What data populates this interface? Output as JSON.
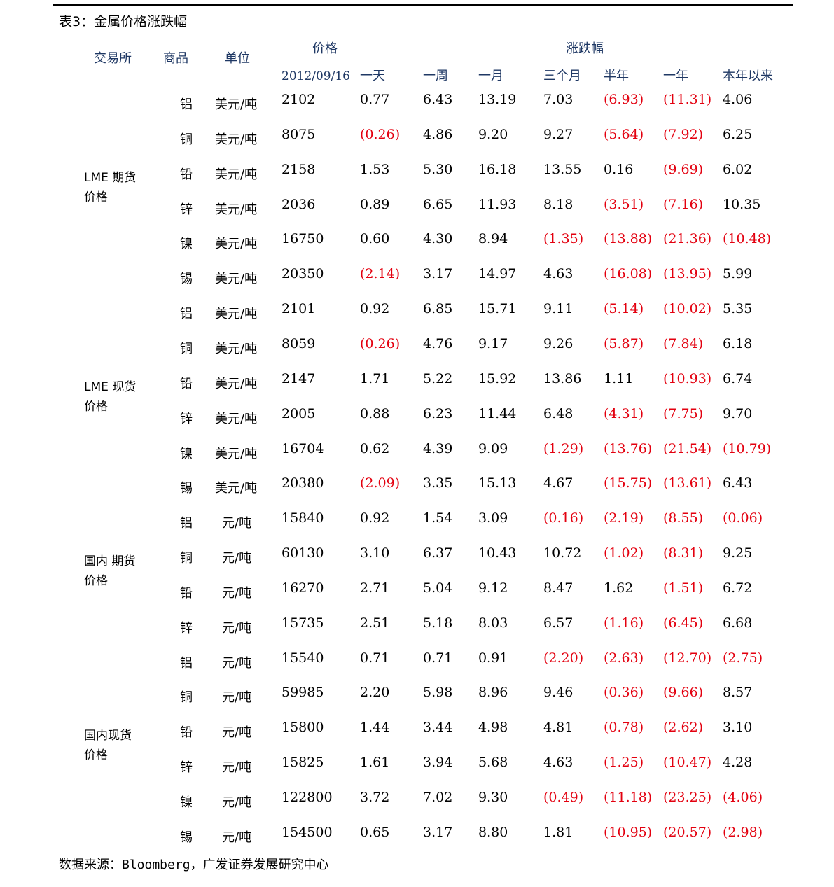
{
  "title": "表3：金属价格涨跌幅",
  "headers": {
    "exchange": "交易所",
    "commodity": "商品",
    "unit": "单位",
    "price": "价格",
    "change": "涨跌幅",
    "date": "2012/09/16",
    "periods": [
      "一天",
      "一周",
      "一月",
      "三个月",
      "半年",
      "一年",
      "本年以来"
    ]
  },
  "groups": [
    {
      "label": "LME 期货\n价格",
      "rows": [
        {
          "metal": "铝",
          "unit": "美元/吨",
          "price": "2102",
          "changes": [
            "0.77",
            "6.43",
            "13.19",
            "7.03",
            "(6.93)",
            "(11.31)",
            "4.06"
          ]
        },
        {
          "metal": "铜",
          "unit": "美元/吨",
          "price": "8075",
          "changes": [
            "(0.26)",
            "4.86",
            "9.20",
            "9.27",
            "(5.64)",
            "(7.92)",
            "6.25"
          ]
        },
        {
          "metal": "铅",
          "unit": "美元/吨",
          "price": "2158",
          "changes": [
            "1.53",
            "5.30",
            "16.18",
            "13.55",
            "0.16",
            "(9.69)",
            "6.02"
          ]
        },
        {
          "metal": "锌",
          "unit": "美元/吨",
          "price": "2036",
          "changes": [
            "0.89",
            "6.65",
            "11.93",
            "8.18",
            "(3.51)",
            "(7.16)",
            "10.35"
          ]
        },
        {
          "metal": "镍",
          "unit": "美元/吨",
          "price": "16750",
          "changes": [
            "0.60",
            "4.30",
            "8.94",
            "(1.35)",
            "(13.88)",
            "(21.36)",
            "(10.48)"
          ]
        },
        {
          "metal": "锡",
          "unit": "美元/吨",
          "price": "20350",
          "changes": [
            "(2.14)",
            "3.17",
            "14.97",
            "4.63",
            "(16.08)",
            "(13.95)",
            "5.99"
          ]
        }
      ]
    },
    {
      "label": "LME 现货\n价格",
      "rows": [
        {
          "metal": "铝",
          "unit": "美元/吨",
          "price": "2101",
          "changes": [
            "0.92",
            "6.85",
            "15.71",
            "9.11",
            "(5.14)",
            "(10.02)",
            "5.35"
          ]
        },
        {
          "metal": "铜",
          "unit": "美元/吨",
          "price": "8059",
          "changes": [
            "(0.26)",
            "4.76",
            "9.17",
            "9.26",
            "(5.87)",
            "(7.84)",
            "6.18"
          ]
        },
        {
          "metal": "铅",
          "unit": "美元/吨",
          "price": "2147",
          "changes": [
            "1.71",
            "5.22",
            "15.92",
            "13.86",
            "1.11",
            "(10.93)",
            "6.74"
          ]
        },
        {
          "metal": "锌",
          "unit": "美元/吨",
          "price": "2005",
          "changes": [
            "0.88",
            "6.23",
            "11.44",
            "6.48",
            "(4.31)",
            "(7.75)",
            "9.70"
          ]
        },
        {
          "metal": "镍",
          "unit": "美元/吨",
          "price": "16704",
          "changes": [
            "0.62",
            "4.39",
            "9.09",
            "(1.29)",
            "(13.76)",
            "(21.54)",
            "(10.79)"
          ]
        },
        {
          "metal": "锡",
          "unit": "美元/吨",
          "price": "20380",
          "changes": [
            "(2.09)",
            "3.35",
            "15.13",
            "4.67",
            "(15.75)",
            "(13.61)",
            "6.43"
          ]
        }
      ]
    },
    {
      "label": "国内 期货\n价格",
      "rows": [
        {
          "metal": "铝",
          "unit": "元/吨",
          "price": "15840",
          "changes": [
            "0.92",
            "1.54",
            "3.09",
            "(0.16)",
            "(2.19)",
            "(8.55)",
            "(0.06)"
          ]
        },
        {
          "metal": "铜",
          "unit": "元/吨",
          "price": "60130",
          "changes": [
            "3.10",
            "6.37",
            "10.43",
            "10.72",
            "(1.02)",
            "(8.31)",
            "9.25"
          ]
        },
        {
          "metal": "铅",
          "unit": "元/吨",
          "price": "16270",
          "changes": [
            "2.71",
            "5.04",
            "9.12",
            "8.47",
            "1.62",
            "(1.51)",
            "6.72"
          ]
        },
        {
          "metal": "锌",
          "unit": "元/吨",
          "price": "15735",
          "changes": [
            "2.51",
            "5.18",
            "8.03",
            "6.57",
            "(1.16)",
            "(6.45)",
            "6.68"
          ]
        }
      ]
    },
    {
      "label": "国内现货\n价格",
      "rows": [
        {
          "metal": "铝",
          "unit": "元/吨",
          "price": "15540",
          "changes": [
            "0.71",
            "0.71",
            "0.91",
            "(2.20)",
            "(2.63)",
            "(12.70)",
            "(2.75)"
          ]
        },
        {
          "metal": "铜",
          "unit": "元/吨",
          "price": "59985",
          "changes": [
            "2.20",
            "5.98",
            "8.96",
            "9.46",
            "(0.36)",
            "(9.66)",
            "8.57"
          ]
        },
        {
          "metal": "铅",
          "unit": "元/吨",
          "price": "15800",
          "changes": [
            "1.44",
            "3.44",
            "4.98",
            "4.81",
            "(0.78)",
            "(2.62)",
            "3.10"
          ]
        },
        {
          "metal": "锌",
          "unit": "元/吨",
          "price": "15825",
          "changes": [
            "1.61",
            "3.94",
            "5.68",
            "4.63",
            "(1.25)",
            "(10.47)",
            "4.28"
          ]
        },
        {
          "metal": "镍",
          "unit": "元/吨",
          "price": "122800",
          "changes": [
            "3.72",
            "7.02",
            "9.30",
            "(0.49)",
            "(11.18)",
            "(23.25)",
            "(4.06)"
          ]
        },
        {
          "metal": "锡",
          "unit": "元/吨",
          "price": "154500",
          "changes": [
            "0.65",
            "3.17",
            "8.80",
            "1.81",
            "(10.95)",
            "(20.57)",
            "(2.98)"
          ]
        }
      ]
    }
  ],
  "colors": {
    "negative": "#e3000f",
    "header": "#1f3864"
  },
  "source": "数据来源：Bloomberg，广发证券发展研究中心"
}
